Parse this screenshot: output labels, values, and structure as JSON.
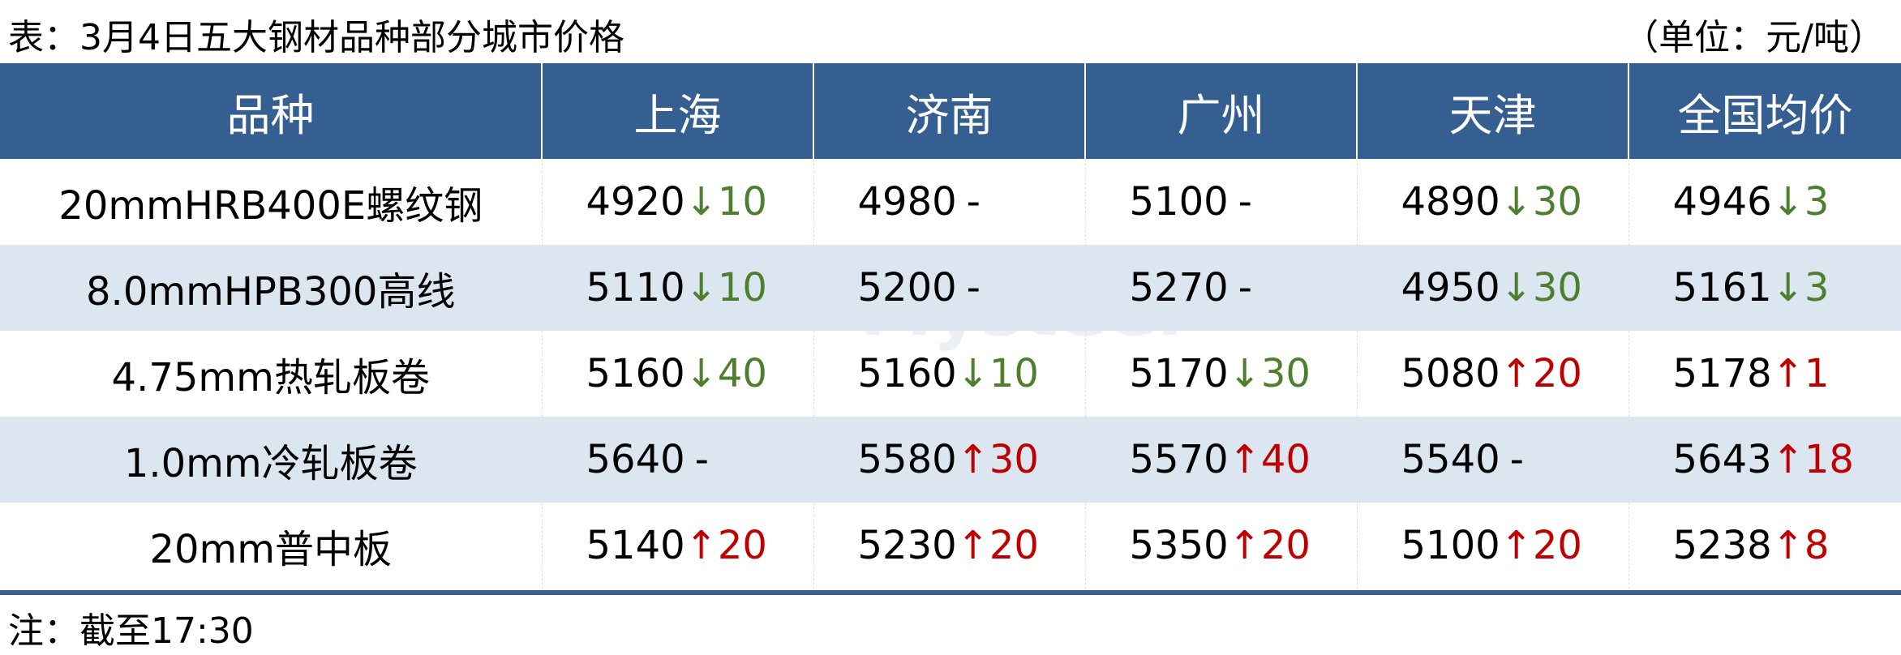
{
  "title": "表：3月4日五大钢材品种部分城市价格",
  "unit": "（单位：元/吨）",
  "headers": [
    "品种",
    "上海",
    "济南",
    "广州",
    "天津",
    "全国均价"
  ],
  "rows": [
    {
      "name": "20mmHRB400E螺纹钢",
      "cells": [
        {
          "price": "4920",
          "dir": "down",
          "arrow": "↓",
          "change": "10"
        },
        {
          "price": "4980",
          "dir": "flat",
          "arrow": "",
          "change": "-"
        },
        {
          "price": "5100",
          "dir": "flat",
          "arrow": "",
          "change": "-"
        },
        {
          "price": "4890",
          "dir": "down",
          "arrow": "↓",
          "change": "30"
        },
        {
          "price": "4946",
          "dir": "down",
          "arrow": "↓",
          "change": "3"
        }
      ]
    },
    {
      "name": "8.0mmHPB300高线",
      "cells": [
        {
          "price": "5110",
          "dir": "down",
          "arrow": "↓",
          "change": "10"
        },
        {
          "price": "5200",
          "dir": "flat",
          "arrow": "",
          "change": "-"
        },
        {
          "price": "5270",
          "dir": "flat",
          "arrow": "",
          "change": "-"
        },
        {
          "price": "4950",
          "dir": "down",
          "arrow": "↓",
          "change": "30"
        },
        {
          "price": "5161",
          "dir": "down",
          "arrow": "↓",
          "change": "3"
        }
      ]
    },
    {
      "name": "4.75mm热轧板卷",
      "cells": [
        {
          "price": "5160",
          "dir": "down",
          "arrow": "↓",
          "change": "40"
        },
        {
          "price": "5160",
          "dir": "down",
          "arrow": "↓",
          "change": "10"
        },
        {
          "price": "5170",
          "dir": "down",
          "arrow": "↓",
          "change": "30"
        },
        {
          "price": "5080",
          "dir": "up",
          "arrow": "↑",
          "change": "20"
        },
        {
          "price": "5178",
          "dir": "up",
          "arrow": "↑",
          "change": "1"
        }
      ]
    },
    {
      "name": "1.0mm冷轧板卷",
      "cells": [
        {
          "price": "5640",
          "dir": "flat",
          "arrow": "",
          "change": "-"
        },
        {
          "price": "5580",
          "dir": "up",
          "arrow": "↑",
          "change": "30"
        },
        {
          "price": "5570",
          "dir": "up",
          "arrow": "↑",
          "change": "40"
        },
        {
          "price": "5540",
          "dir": "flat",
          "arrow": "",
          "change": "-"
        },
        {
          "price": "5643",
          "dir": "up",
          "arrow": "↑",
          "change": "18"
        }
      ]
    },
    {
      "name": "20mm普中板",
      "cells": [
        {
          "price": "5140",
          "dir": "up",
          "arrow": "↑",
          "change": "20"
        },
        {
          "price": "5230",
          "dir": "up",
          "arrow": "↑",
          "change": "20"
        },
        {
          "price": "5350",
          "dir": "up",
          "arrow": "↑",
          "change": "20"
        },
        {
          "price": "5100",
          "dir": "up",
          "arrow": "↑",
          "change": "20"
        },
        {
          "price": "5238",
          "dir": "up",
          "arrow": "↑",
          "change": "8"
        }
      ]
    }
  ],
  "note": "注：截至17:30",
  "watermark": "我的钢铁 Mysteel.com",
  "colors": {
    "header_bg": "#365F91",
    "alt_row": "#DCE6F1",
    "down": "#4E7F2E",
    "up": "#C00000"
  }
}
